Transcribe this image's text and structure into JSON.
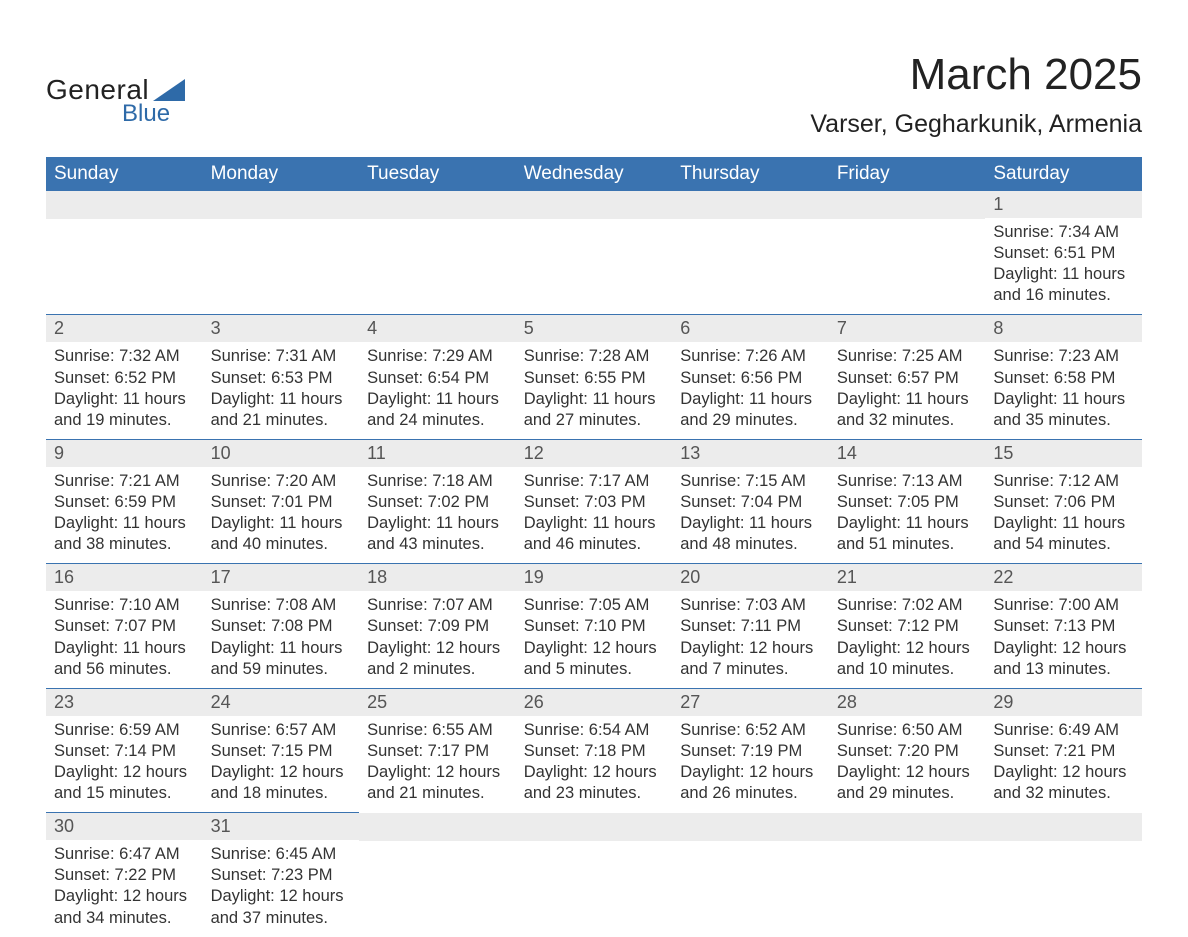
{
  "brand": {
    "name_part1": "General",
    "name_part2": "Blue",
    "color_text": "#222222",
    "color_blue": "#2e6aa8"
  },
  "title": "March 2025",
  "location": "Varser, Gegharkunik, Armenia",
  "styling": {
    "header_bg": "#3a73b0",
    "header_fg": "#ffffff",
    "daynum_bg": "#ececec",
    "row_divider": "#3a73b0",
    "body_text_color": "#333333",
    "page_bg": "#ffffff",
    "title_fontsize": 44,
    "location_fontsize": 25,
    "dayheader_fontsize": 19,
    "cell_fontsize": 16.5
  },
  "day_headers": [
    "Sunday",
    "Monday",
    "Tuesday",
    "Wednesday",
    "Thursday",
    "Friday",
    "Saturday"
  ],
  "labels": {
    "sunrise": "Sunrise: ",
    "sunset": "Sunset: ",
    "daylight": "Daylight: "
  },
  "weeks": [
    [
      null,
      null,
      null,
      null,
      null,
      null,
      {
        "n": "1",
        "sunrise": "7:34 AM",
        "sunset": "6:51 PM",
        "daylight": "11 hours and 16 minutes."
      }
    ],
    [
      {
        "n": "2",
        "sunrise": "7:32 AM",
        "sunset": "6:52 PM",
        "daylight": "11 hours and 19 minutes."
      },
      {
        "n": "3",
        "sunrise": "7:31 AM",
        "sunset": "6:53 PM",
        "daylight": "11 hours and 21 minutes."
      },
      {
        "n": "4",
        "sunrise": "7:29 AM",
        "sunset": "6:54 PM",
        "daylight": "11 hours and 24 minutes."
      },
      {
        "n": "5",
        "sunrise": "7:28 AM",
        "sunset": "6:55 PM",
        "daylight": "11 hours and 27 minutes."
      },
      {
        "n": "6",
        "sunrise": "7:26 AM",
        "sunset": "6:56 PM",
        "daylight": "11 hours and 29 minutes."
      },
      {
        "n": "7",
        "sunrise": "7:25 AM",
        "sunset": "6:57 PM",
        "daylight": "11 hours and 32 minutes."
      },
      {
        "n": "8",
        "sunrise": "7:23 AM",
        "sunset": "6:58 PM",
        "daylight": "11 hours and 35 minutes."
      }
    ],
    [
      {
        "n": "9",
        "sunrise": "7:21 AM",
        "sunset": "6:59 PM",
        "daylight": "11 hours and 38 minutes."
      },
      {
        "n": "10",
        "sunrise": "7:20 AM",
        "sunset": "7:01 PM",
        "daylight": "11 hours and 40 minutes."
      },
      {
        "n": "11",
        "sunrise": "7:18 AM",
        "sunset": "7:02 PM",
        "daylight": "11 hours and 43 minutes."
      },
      {
        "n": "12",
        "sunrise": "7:17 AM",
        "sunset": "7:03 PM",
        "daylight": "11 hours and 46 minutes."
      },
      {
        "n": "13",
        "sunrise": "7:15 AM",
        "sunset": "7:04 PM",
        "daylight": "11 hours and 48 minutes."
      },
      {
        "n": "14",
        "sunrise": "7:13 AM",
        "sunset": "7:05 PM",
        "daylight": "11 hours and 51 minutes."
      },
      {
        "n": "15",
        "sunrise": "7:12 AM",
        "sunset": "7:06 PM",
        "daylight": "11 hours and 54 minutes."
      }
    ],
    [
      {
        "n": "16",
        "sunrise": "7:10 AM",
        "sunset": "7:07 PM",
        "daylight": "11 hours and 56 minutes."
      },
      {
        "n": "17",
        "sunrise": "7:08 AM",
        "sunset": "7:08 PM",
        "daylight": "11 hours and 59 minutes."
      },
      {
        "n": "18",
        "sunrise": "7:07 AM",
        "sunset": "7:09 PM",
        "daylight": "12 hours and 2 minutes."
      },
      {
        "n": "19",
        "sunrise": "7:05 AM",
        "sunset": "7:10 PM",
        "daylight": "12 hours and 5 minutes."
      },
      {
        "n": "20",
        "sunrise": "7:03 AM",
        "sunset": "7:11 PM",
        "daylight": "12 hours and 7 minutes."
      },
      {
        "n": "21",
        "sunrise": "7:02 AM",
        "sunset": "7:12 PM",
        "daylight": "12 hours and 10 minutes."
      },
      {
        "n": "22",
        "sunrise": "7:00 AM",
        "sunset": "7:13 PM",
        "daylight": "12 hours and 13 minutes."
      }
    ],
    [
      {
        "n": "23",
        "sunrise": "6:59 AM",
        "sunset": "7:14 PM",
        "daylight": "12 hours and 15 minutes."
      },
      {
        "n": "24",
        "sunrise": "6:57 AM",
        "sunset": "7:15 PM",
        "daylight": "12 hours and 18 minutes."
      },
      {
        "n": "25",
        "sunrise": "6:55 AM",
        "sunset": "7:17 PM",
        "daylight": "12 hours and 21 minutes."
      },
      {
        "n": "26",
        "sunrise": "6:54 AM",
        "sunset": "7:18 PM",
        "daylight": "12 hours and 23 minutes."
      },
      {
        "n": "27",
        "sunrise": "6:52 AM",
        "sunset": "7:19 PM",
        "daylight": "12 hours and 26 minutes."
      },
      {
        "n": "28",
        "sunrise": "6:50 AM",
        "sunset": "7:20 PM",
        "daylight": "12 hours and 29 minutes."
      },
      {
        "n": "29",
        "sunrise": "6:49 AM",
        "sunset": "7:21 PM",
        "daylight": "12 hours and 32 minutes."
      }
    ],
    [
      {
        "n": "30",
        "sunrise": "6:47 AM",
        "sunset": "7:22 PM",
        "daylight": "12 hours and 34 minutes."
      },
      {
        "n": "31",
        "sunrise": "6:45 AM",
        "sunset": "7:23 PM",
        "daylight": "12 hours and 37 minutes."
      },
      null,
      null,
      null,
      null,
      null
    ]
  ]
}
